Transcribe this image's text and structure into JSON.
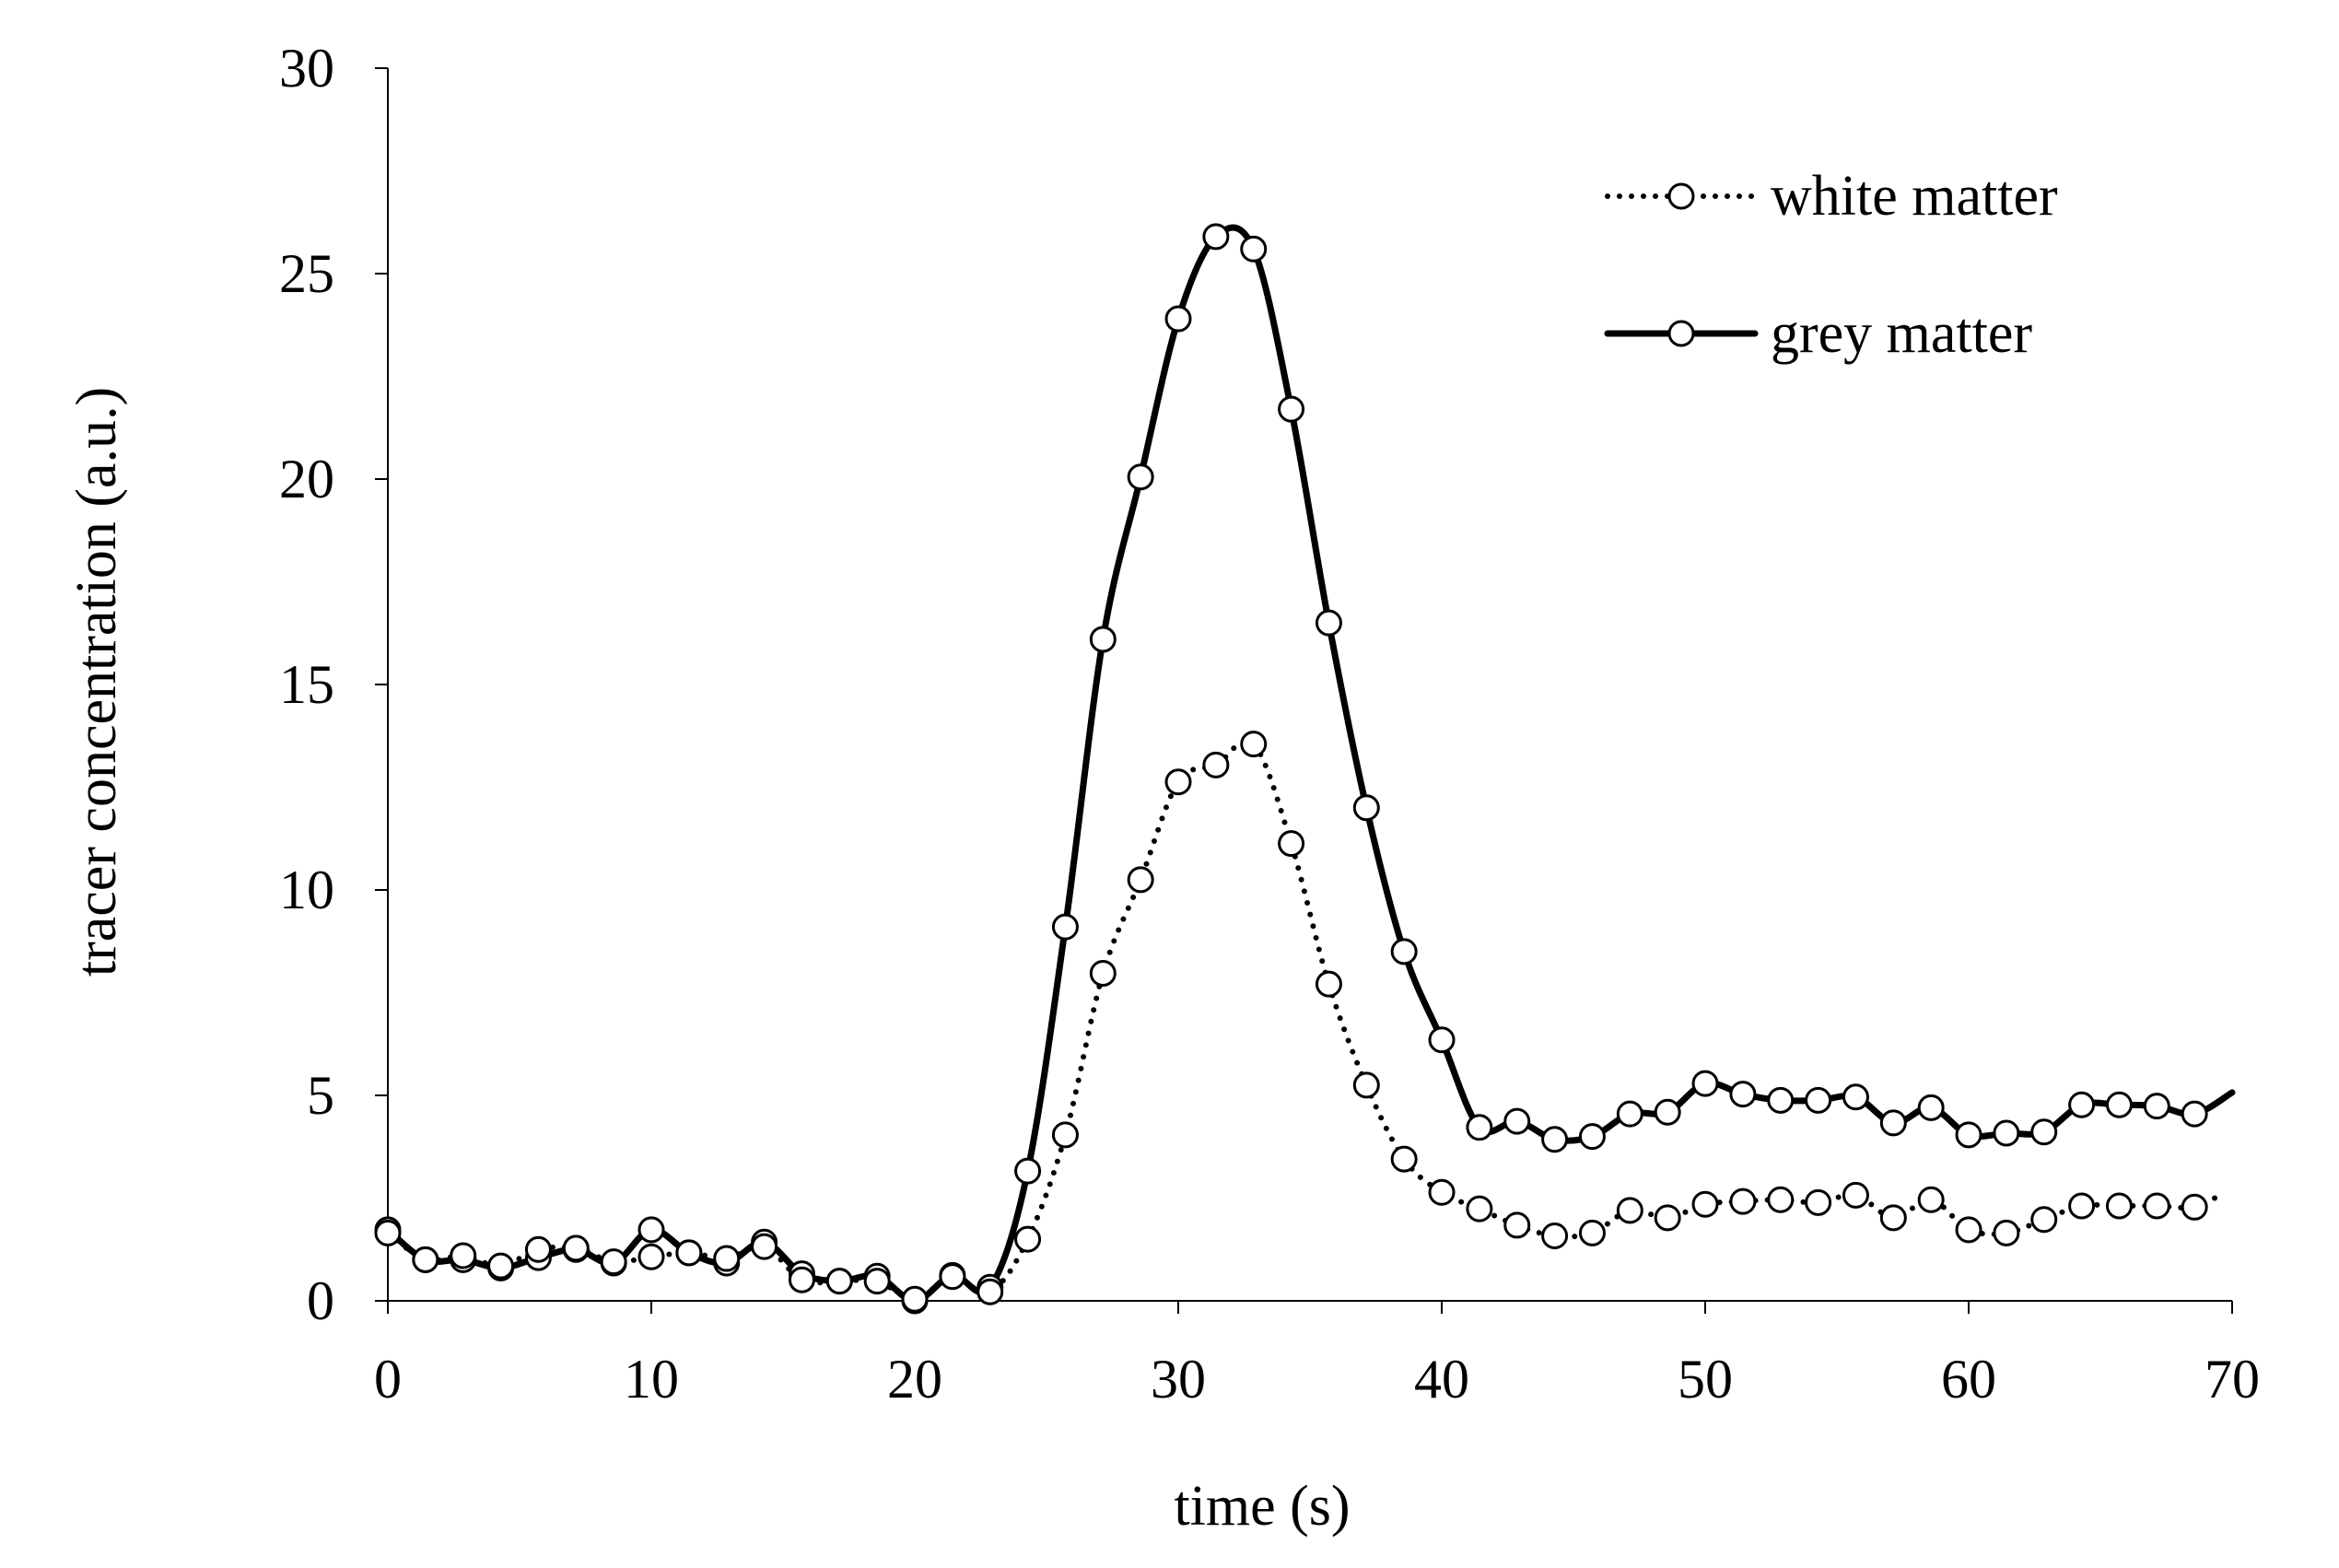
{
  "chart_data": {
    "type": "line",
    "title": "",
    "xlabel": "time (s)",
    "ylabel": "tracer concentration (a.u.)",
    "xlim": [
      0,
      70
    ],
    "ylim": [
      0,
      30
    ],
    "xticks": [
      0,
      10,
      20,
      30,
      40,
      50,
      60,
      70
    ],
    "yticks": [
      0,
      5,
      10,
      15,
      20,
      25,
      30
    ],
    "grid": false,
    "legend_position": "top-right",
    "sample_interval_s": 1.4286,
    "series": [
      {
        "name": "white matter",
        "style": "dotted",
        "values": [
          1.65,
          1.0,
          1.1,
          0.85,
          1.25,
          1.28,
          0.95,
          1.07,
          1.17,
          1.03,
          1.32,
          0.51,
          0.48,
          0.48,
          0.04,
          0.59,
          0.22,
          1.5,
          4.04,
          7.97,
          10.25,
          12.63,
          13.04,
          13.55,
          11.13,
          7.71,
          5.25,
          3.45,
          2.64,
          2.24,
          1.84,
          1.58,
          1.65,
          2.2,
          2.02,
          2.35,
          2.42,
          2.46,
          2.39,
          2.57,
          2.02,
          2.46,
          1.73,
          1.65,
          1.98,
          2.31,
          2.31,
          2.31,
          2.28
        ],
        "line_end": [
          69.6,
          2.6
        ]
      },
      {
        "name": "grey matter",
        "style": "solid",
        "values": [
          1.73,
          1.0,
          1.0,
          0.8,
          1.05,
          1.25,
          0.92,
          1.73,
          1.17,
          0.92,
          1.43,
          0.66,
          0.48,
          0.6,
          0.0,
          0.62,
          0.33,
          3.16,
          9.1,
          16.1,
          20.05,
          23.9,
          25.9,
          25.6,
          21.7,
          16.5,
          12.0,
          8.5,
          6.35,
          4.22,
          4.37,
          3.93,
          4.0,
          4.55,
          4.59,
          5.29,
          5.03,
          4.88,
          4.88,
          4.96,
          4.33,
          4.7,
          4.04,
          4.08,
          4.11,
          4.77,
          4.77,
          4.74,
          4.55
        ],
        "line_end": [
          70,
          5.07
        ]
      }
    ]
  }
}
